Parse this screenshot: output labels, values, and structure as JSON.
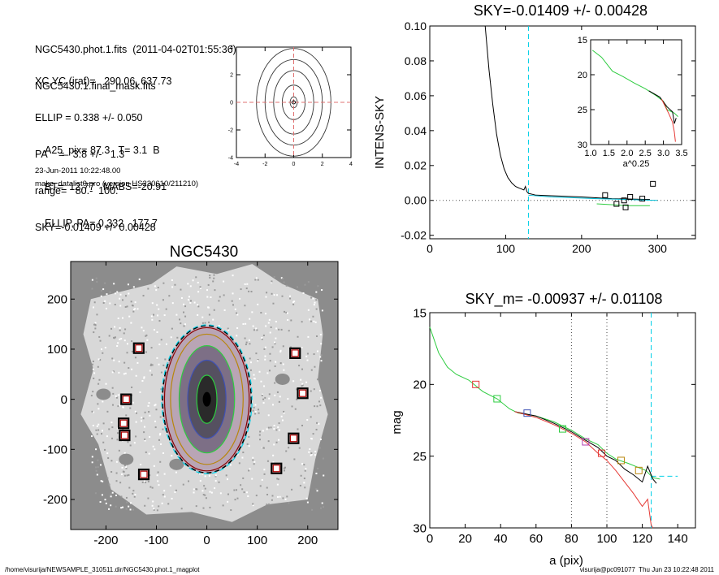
{
  "header": {
    "lines_a": [
      "NGC5430.phot.1.fits  (2011-04-02T01:55:36)",
      "NGC5430.1.final_mask.fits"
    ],
    "lines_b": [
      "XC,YC (iraf)=   290.06, 637.73",
      "ELLIP = 0.338 +/- 0.050",
      "PA    =   3.8 +/-   1.3",
      "range=   80.-  100.",
      "SKY=-0.01409 +/- 0.00428"
    ],
    "lines_c": [
      "A25_pix= 87.3   T= 3.1  B",
      "BT=  12.77   MABS=-20.91",
      "ELLIP, PA= 0.332   177.7"
    ],
    "date": "23-Jun-2011 10:22:48.00",
    "program": "make_datalist0.pro (version HS230610/211210)"
  },
  "footer": {
    "left": "/home/visurija/NEWSAMPLE_310511.dir/NGC5430.phot.1_magplot",
    "right": "visurija@pc091077  Thu Jun 23 10:22:48 2011"
  },
  "chart_data": [
    {
      "id": "contour",
      "type": "contour",
      "title": "",
      "xlim": [
        -4,
        4
      ],
      "ylim": [
        -4,
        4
      ],
      "xticks": [
        "-4",
        "-2",
        "0",
        "2",
        "4"
      ],
      "yticks": [
        "-4",
        "-2",
        "0",
        "2",
        "4"
      ],
      "center": [
        0,
        0
      ],
      "contours_semi_axes": [
        [
          0.25,
          0.4
        ],
        [
          0.8,
          1.25
        ],
        [
          1.4,
          2.3
        ],
        [
          2.0,
          3.1
        ],
        [
          2.6,
          3.9
        ]
      ],
      "colors": {
        "contour": "#333333",
        "crosshair": "#e07070"
      }
    },
    {
      "id": "sky_profile",
      "type": "line",
      "title": "SKY=-0.01409 +/- 0.00428",
      "xlabel": "",
      "ylabel": "INTENS-SKY",
      "xlim": [
        0,
        350
      ],
      "ylim": [
        -0.022,
        0.1
      ],
      "xticks": [
        "0",
        "100",
        "200",
        "300"
      ],
      "yticks": [
        "-0.02",
        "0.00",
        "0.02",
        "0.04",
        "0.06",
        "0.08",
        "0.10"
      ],
      "series": [
        {
          "color": "#000000",
          "points": [
            [
              73,
              0.1
            ],
            [
              78,
              0.075
            ],
            [
              83,
              0.055
            ],
            [
              88,
              0.038
            ],
            [
              93,
              0.026
            ],
            [
              98,
              0.018
            ],
            [
              103,
              0.013
            ],
            [
              108,
              0.01
            ],
            [
              113,
              0.008
            ],
            [
              118,
              0.007
            ],
            [
              124,
              0.006
            ],
            [
              126,
              0.008
            ],
            [
              128,
              0.005
            ],
            [
              130,
              0.004
            ],
            [
              140,
              0.003
            ],
            [
              170,
              0.0025
            ],
            [
              200,
              0.002
            ],
            [
              240,
              0.001
            ],
            [
              290,
              0.0005
            ]
          ]
        },
        {
          "color": "#00bcd4",
          "points": [
            [
              130,
              0.003
            ],
            [
              160,
              0.002
            ],
            [
              190,
              0.0015
            ],
            [
              220,
              0.001
            ],
            [
              260,
              0.0005
            ],
            [
              300,
              0.0
            ]
          ]
        },
        {
          "color": "#2ecc40",
          "points": [
            [
              220,
              -0.002
            ],
            [
              260,
              -0.003
            ],
            [
              290,
              -0.003
            ]
          ]
        }
      ],
      "squares": [
        [
          231,
          0.003
        ],
        [
          246,
          -0.002
        ],
        [
          256,
          0.0
        ],
        [
          264,
          0.002
        ],
        [
          280,
          0.001
        ],
        [
          294,
          0.0095
        ],
        [
          258,
          -0.004
        ]
      ],
      "vline_x": 130,
      "hline_y": 0.0,
      "inset": {
        "xlabel": "a^0.25",
        "xlim": [
          1.0,
          3.5
        ],
        "ylim": [
          15,
          30
        ],
        "xticks": [
          "1.0",
          "1.5",
          "2.0",
          "2.5",
          "3.0",
          "3.5"
        ],
        "yticks": [
          "15",
          "20",
          "25",
          "30"
        ],
        "series": [
          {
            "color": "#2ecc40",
            "points": [
              [
                1.05,
                16.5
              ],
              [
                1.3,
                17.5
              ],
              [
                1.6,
                19.5
              ],
              [
                1.9,
                20.3
              ],
              [
                2.2,
                21.2
              ],
              [
                2.5,
                22.0
              ],
              [
                2.8,
                23.0
              ],
              [
                3.0,
                23.8
              ],
              [
                3.1,
                25.0
              ],
              [
                3.3,
                25.5
              ],
              [
                3.4,
                26.0
              ]
            ]
          },
          {
            "color": "#000000",
            "points": [
              [
                2.6,
                22.3
              ],
              [
                2.9,
                23.2
              ],
              [
                3.1,
                24.6
              ],
              [
                3.25,
                25.3
              ],
              [
                3.3,
                27.0
              ],
              [
                3.35,
                26.2
              ]
            ]
          },
          {
            "color": "#e53935",
            "points": [
              [
                2.95,
                23.5
              ],
              [
                3.15,
                25.6
              ],
              [
                3.25,
                26.8
              ],
              [
                3.3,
                28.2
              ],
              [
                3.33,
                29.6
              ]
            ]
          }
        ]
      }
    },
    {
      "id": "galaxy_image",
      "type": "image",
      "title": "NGC5430",
      "xlim": [
        -270,
        260
      ],
      "ylim": [
        -260,
        275
      ],
      "xticks": [
        "-200",
        "-100",
        "0",
        "100",
        "200"
      ],
      "yticks": [
        "-200",
        "-100",
        "0",
        "100",
        "200"
      ],
      "center": [
        0,
        0
      ],
      "ellipse_semi_axes": [
        [
          20,
          48
        ],
        [
          38,
          78
        ],
        [
          55,
          107
        ],
        [
          72,
          130
        ],
        [
          84,
          143
        ]
      ],
      "ellipse_colors": [
        "#2ecc40",
        "#3f51b5",
        "#2ecc40",
        "#b8860b",
        "#8b0000"
      ],
      "outer_dashed": [
        88,
        147
      ],
      "boxes": [
        [
          -135,
          102
        ],
        [
          -160,
          0
        ],
        [
          -165,
          -48
        ],
        [
          -163,
          -72
        ],
        [
          -125,
          -150
        ],
        [
          175,
          92
        ],
        [
          190,
          12
        ],
        [
          172,
          -78
        ],
        [
          138,
          -138
        ]
      ]
    },
    {
      "id": "mag_profile",
      "type": "line",
      "title": "SKY_m= -0.00937 +/- 0.01108",
      "xlabel": "a (pix)",
      "ylabel": "mag",
      "xlim": [
        0,
        150
      ],
      "ylim": [
        15,
        30
      ],
      "xticks": [
        "0",
        "20",
        "40",
        "60",
        "80",
        "100",
        "120",
        "140"
      ],
      "yticks": [
        "15",
        "20",
        "25",
        "30"
      ],
      "series": [
        {
          "color": "#2ecc40",
          "points": [
            [
              0,
              16.0
            ],
            [
              5,
              17.8
            ],
            [
              10,
              18.8
            ],
            [
              15,
              19.3
            ],
            [
              22,
              19.7
            ],
            [
              30,
              20.5
            ],
            [
              38,
              21.0
            ],
            [
              45,
              21.7
            ],
            [
              50,
              22.0
            ],
            [
              60,
              22.2
            ],
            [
              70,
              22.6
            ],
            [
              80,
              23.2
            ],
            [
              88,
              23.8
            ],
            [
              95,
              24.2
            ],
            [
              100,
              24.8
            ],
            [
              105,
              25.2
            ],
            [
              112,
              25.5
            ],
            [
              118,
              25.8
            ],
            [
              122,
              26.0
            ],
            [
              126,
              26.5
            ],
            [
              130,
              26.6
            ]
          ]
        },
        {
          "color": "#000000",
          "points": [
            [
              48,
              21.9
            ],
            [
              60,
              22.2
            ],
            [
              70,
              22.7
            ],
            [
              80,
              23.3
            ],
            [
              88,
              23.9
            ],
            [
              95,
              24.4
            ],
            [
              100,
              25.0
            ],
            [
              105,
              25.3
            ],
            [
              110,
              25.9
            ],
            [
              115,
              26.3
            ],
            [
              120,
              26.8
            ],
            [
              123,
              25.7
            ],
            [
              126,
              26.6
            ],
            [
              128,
              26.9
            ]
          ]
        },
        {
          "color": "#e53935",
          "points": [
            [
              48,
              21.9
            ],
            [
              60,
              22.3
            ],
            [
              70,
              22.8
            ],
            [
              80,
              23.4
            ],
            [
              88,
              24.0
            ],
            [
              95,
              24.8
            ],
            [
              100,
              25.3
            ],
            [
              105,
              26.0
            ],
            [
              110,
              26.8
            ],
            [
              115,
              27.6
            ],
            [
              120,
              28.5
            ],
            [
              123,
              28.0
            ],
            [
              125,
              29.8
            ],
            [
              126,
              30.0
            ]
          ]
        }
      ],
      "squares": [
        [
          26,
          20.0,
          "#e53935"
        ],
        [
          38,
          21.0,
          "#2ecc40"
        ],
        [
          55,
          22.0,
          "#3f51b5"
        ],
        [
          75,
          23.1,
          "#2ecc40"
        ],
        [
          88,
          24.0,
          "#b03fb0"
        ],
        [
          97,
          24.8,
          "#e53935"
        ],
        [
          108,
          25.3,
          "#b8860b"
        ],
        [
          118,
          26.0,
          "#b8860b"
        ]
      ],
      "dotted_x": [
        80,
        100
      ],
      "dashed_x": 125,
      "hdash_y": 26.4
    }
  ]
}
